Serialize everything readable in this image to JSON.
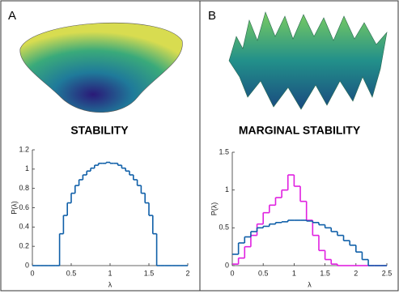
{
  "chart_data": [
    {
      "type": "histogram",
      "panel_label": "A",
      "title": "STABILITY",
      "xlabel": "λ",
      "ylabel": "P(λ)",
      "xlim": [
        0,
        2
      ],
      "xticks": [
        0,
        0.5,
        1,
        1.5,
        2
      ],
      "ylim": [
        0,
        1.2
      ],
      "yticks": [
        0,
        0.2,
        0.4,
        0.6,
        0.8,
        1,
        1.2
      ],
      "bins": [
        0,
        0.05,
        0.1,
        0.15,
        0.2,
        0.25,
        0.3,
        0.35,
        0.4,
        0.45,
        0.5,
        0.55,
        0.6,
        0.65,
        0.7,
        0.75,
        0.8,
        0.85,
        0.9,
        0.95,
        1,
        1.05,
        1.1,
        1.15,
        1.2,
        1.25,
        1.3,
        1.35,
        1.4,
        1.45,
        1.5,
        1.55,
        1.6,
        1.65,
        1.7,
        1.75,
        1.8,
        1.85,
        1.9,
        1.95,
        2
      ],
      "series": [
        {
          "color": "#0f5fa8",
          "values": [
            0,
            0,
            0,
            0,
            0,
            0,
            0,
            0.33,
            0.52,
            0.65,
            0.75,
            0.83,
            0.89,
            0.94,
            0.98,
            1.01,
            1.04,
            1.06,
            1.06,
            1.07,
            1.06,
            1.06,
            1.04,
            1.01,
            0.98,
            0.94,
            0.89,
            0.83,
            0.75,
            0.65,
            0.52,
            0.33,
            0,
            0,
            0,
            0,
            0,
            0,
            0,
            0
          ]
        }
      ]
    },
    {
      "type": "histogram",
      "panel_label": "B",
      "title": "MARGINAL STABILITY",
      "xlabel": "λ",
      "ylabel": "P(λ)",
      "xlim": [
        0,
        2.5
      ],
      "xticks": [
        0,
        0.5,
        1,
        1.5,
        2,
        2.5
      ],
      "ylim": [
        0,
        1.5
      ],
      "yticks": [
        0,
        0.5,
        1,
        1.5
      ],
      "bins": [
        0,
        0.1,
        0.2,
        0.3,
        0.4,
        0.5,
        0.6,
        0.7,
        0.8,
        0.9,
        1,
        1.1,
        1.2,
        1.3,
        1.4,
        1.5,
        1.6,
        1.7,
        1.8,
        1.9,
        2,
        2.1,
        2.2,
        2.3,
        2.4,
        2.5
      ],
      "series": [
        {
          "color": "#e020e0",
          "values": [
            0.02,
            0.1,
            0.25,
            0.4,
            0.55,
            0.7,
            0.8,
            0.9,
            1.0,
            1.2,
            1.05,
            0.85,
            0.6,
            0.4,
            0.2,
            0.08,
            0.02,
            0,
            0,
            0,
            0,
            0,
            0,
            0,
            0
          ]
        },
        {
          "color": "#0f5fa8",
          "values": [
            0.15,
            0.3,
            0.38,
            0.45,
            0.5,
            0.52,
            0.55,
            0.57,
            0.58,
            0.6,
            0.6,
            0.6,
            0.59,
            0.57,
            0.54,
            0.5,
            0.45,
            0.4,
            0.33,
            0.27,
            0.18,
            0.08,
            0,
            0,
            0
          ]
        }
      ]
    }
  ]
}
